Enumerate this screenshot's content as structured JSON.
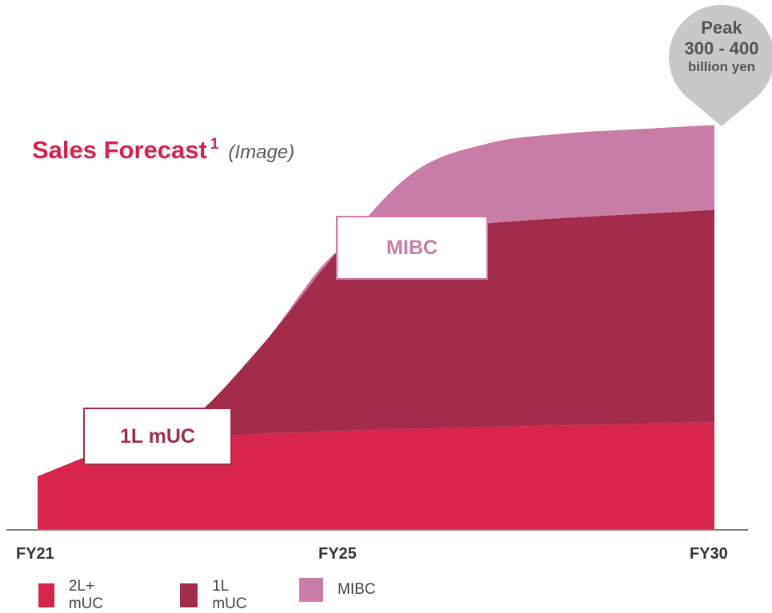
{
  "chart_data": {
    "type": "area",
    "stacked": true,
    "title": "Sales Forecast",
    "title_superscript": "1",
    "subtitle": "(Image)",
    "x": [
      2021,
      2022,
      2023,
      2024,
      2025,
      2026,
      2027,
      2028,
      2029,
      2030
    ],
    "x_tick_labels": [
      {
        "x": 2021,
        "label": "FY21"
      },
      {
        "x": 2025,
        "label": "FY25"
      },
      {
        "x": 2030,
        "label": "FY30"
      }
    ],
    "series": [
      {
        "name": "2L+ mUC",
        "color": "#d8234c",
        "values": [
          13.3,
          20.2,
          22.6,
          23.8,
          24.5,
          25.0,
          25.5,
          25.9,
          26.3,
          26.7
        ]
      },
      {
        "name": "1L mUC",
        "color": "#a32c4c",
        "values": [
          0,
          0,
          4.4,
          22.3,
          44.7,
          49.4,
          50.5,
          51.4,
          52.0,
          52.6
        ]
      },
      {
        "name": "MIBC",
        "color": "#c97ca6",
        "values": [
          0,
          0,
          0,
          0,
          0,
          14.2,
          19.8,
          20.9,
          21.0,
          21.0
        ]
      }
    ],
    "ylim": [
      0,
      100
    ],
    "legend": "bottom",
    "grid": false,
    "annotations": [
      {
        "label": "1L mUC",
        "series": "1L mUC"
      },
      {
        "label": "MIBC",
        "series": "MIBC"
      }
    ],
    "peak_callout": {
      "line1": "Peak",
      "line2": "300 - 400",
      "line3": "billion yen"
    }
  }
}
